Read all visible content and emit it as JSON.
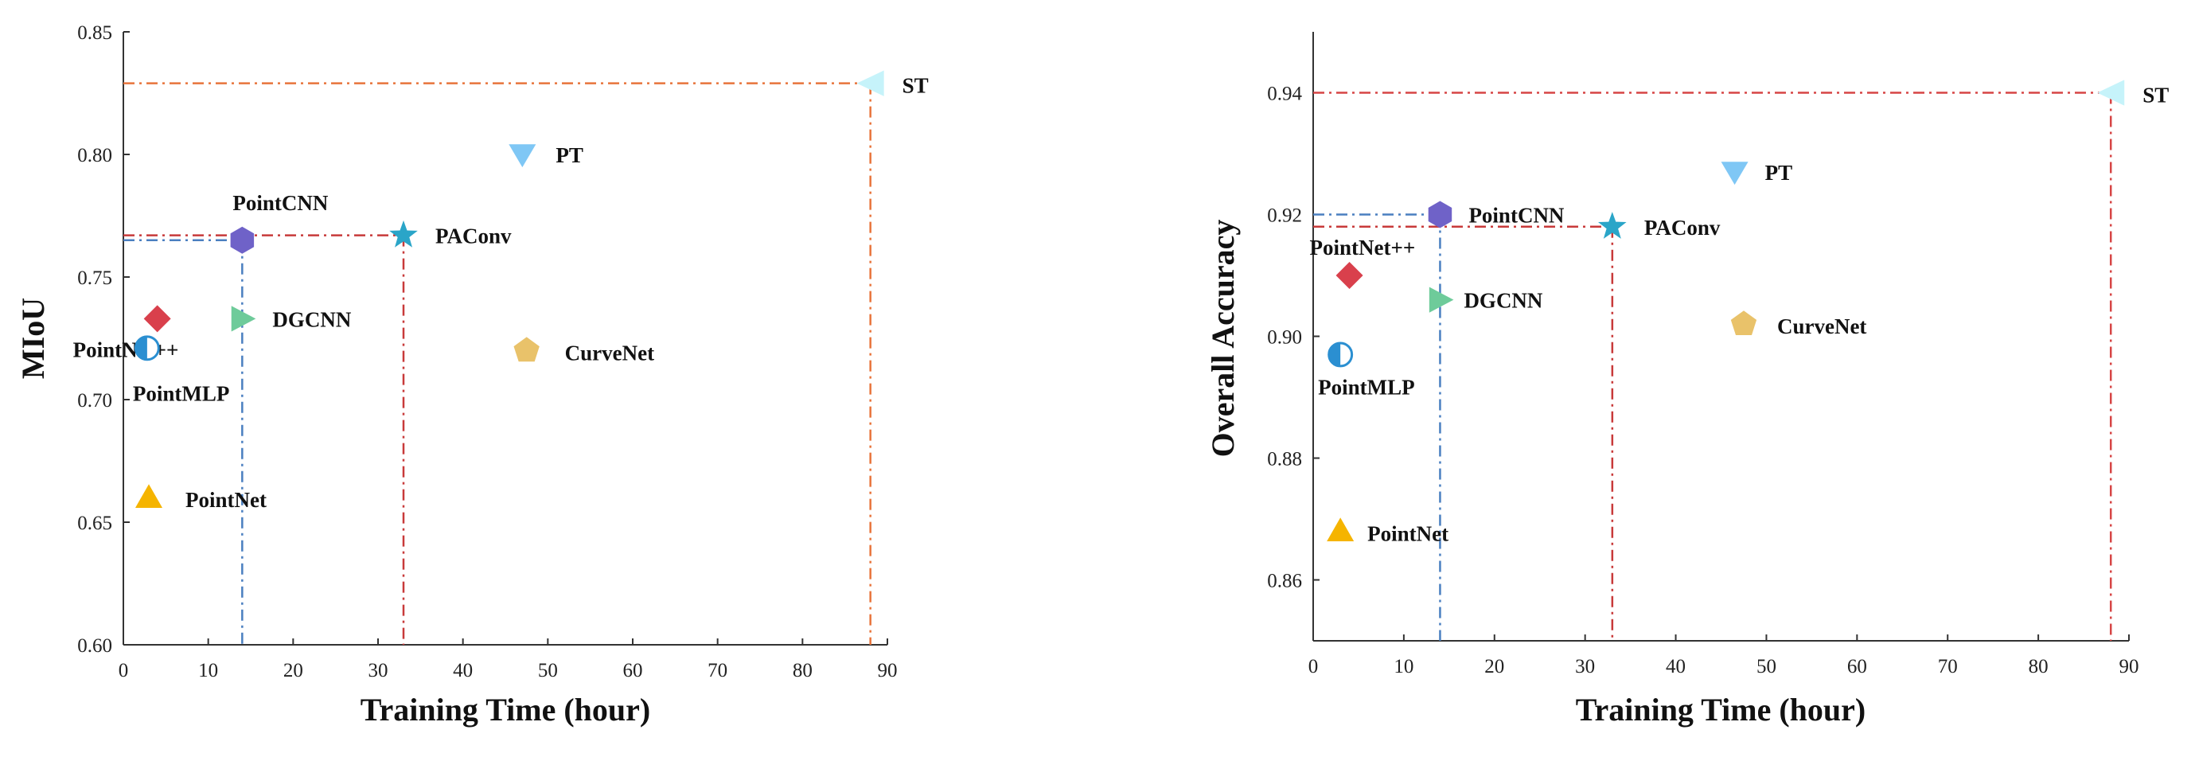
{
  "chart_data": [
    {
      "type": "scatter",
      "title": "",
      "xlabel": "Training Time (hour)",
      "ylabel": "MIoU",
      "xlim": [
        0,
        90
      ],
      "ylim": [
        0.6,
        0.85
      ],
      "xticks": [
        0,
        10,
        20,
        30,
        40,
        50,
        60,
        70,
        80,
        90
      ],
      "xtick_labels": [
        "0",
        "10",
        "20",
        "30",
        "40",
        "50",
        "60",
        "70",
        "80",
        "90"
      ],
      "yticks": [
        0.6,
        0.65,
        0.7,
        0.75,
        0.8,
        0.85
      ],
      "ytick_labels": [
        "0.60",
        "0.65",
        "0.70",
        "0.75",
        "0.80",
        "0.85"
      ],
      "grid": false,
      "points": [
        {
          "name": "ST",
          "label": "ST",
          "x": 88.0,
          "y": 0.829,
          "marker": "triangle-left",
          "color": "#c6f3fa",
          "label_pos": "right"
        },
        {
          "name": "PT",
          "label": "PT",
          "x": 47.0,
          "y": 0.8,
          "marker": "triangle-down",
          "color": "#7fc7f5",
          "label_pos": "right"
        },
        {
          "name": "PointCNN",
          "label": "PointCNN",
          "x": 14.0,
          "y": 0.765,
          "marker": "hexagon",
          "color": "#6f62c8",
          "label_pos": "above"
        },
        {
          "name": "PAConv",
          "label": "PAConv",
          "x": 33.0,
          "y": 0.767,
          "marker": "star",
          "color": "#2aa5c8",
          "label_pos": "right"
        },
        {
          "name": "PointNet++",
          "label": "PointNet++",
          "x": 4.0,
          "y": 0.733,
          "marker": "diamond",
          "color": "#d9404c",
          "label_pos": "above"
        },
        {
          "name": "DGCNN",
          "label": "DGCNN",
          "x": 14.0,
          "y": 0.733,
          "marker": "triangle-right",
          "color": "#6ecb9a",
          "label_pos": "right"
        },
        {
          "name": "CurveNet",
          "label": "CurveNet",
          "x": 47.5,
          "y": 0.72,
          "marker": "pentagon",
          "color": "#e9c26a",
          "label_pos": "right"
        },
        {
          "name": "PointMLP",
          "label": "PointMLP",
          "x": 2.8,
          "y": 0.721,
          "marker": "half-circle",
          "color": "#2b8fd1",
          "label_pos": "below"
        },
        {
          "name": "PointNet",
          "label": "PointNet",
          "x": 3.0,
          "y": 0.66,
          "marker": "triangle-up",
          "color": "#f5b400",
          "label_pos": "right"
        }
      ],
      "reference_lines": [
        {
          "x": 88.0,
          "y": 0.829,
          "color": "#e8743b",
          "style": "dash-dot"
        },
        {
          "x": 33.0,
          "y": 0.767,
          "color": "#c83a3a",
          "style": "dash-dot"
        },
        {
          "x": 14.0,
          "y": 0.765,
          "color": "#4a7fc0",
          "style": "dash-dot"
        }
      ]
    },
    {
      "type": "scatter",
      "title": "",
      "xlabel": "Training Time (hour)",
      "ylabel": "Overall Accuracy",
      "xlim": [
        0,
        90
      ],
      "ylim": [
        0.85,
        0.95
      ],
      "xticks": [
        0,
        10,
        20,
        30,
        40,
        50,
        60,
        70,
        80,
        90
      ],
      "xtick_labels": [
        "0",
        "10",
        "20",
        "30",
        "40",
        "50",
        "60",
        "70",
        "80",
        "90"
      ],
      "yticks": [
        0.86,
        0.88,
        0.9,
        0.92,
        0.94
      ],
      "ytick_labels": [
        "0.86",
        "0.88",
        "0.90",
        "0.92",
        "0.94"
      ],
      "grid": false,
      "points": [
        {
          "name": "ST",
          "label": "ST",
          "x": 88.0,
          "y": 0.94,
          "marker": "triangle-left",
          "color": "#c6f3fa",
          "label_pos": "right"
        },
        {
          "name": "PT",
          "label": "PT",
          "x": 46.5,
          "y": 0.927,
          "marker": "triangle-down",
          "color": "#7fc7f5",
          "label_pos": "right"
        },
        {
          "name": "PointCNN",
          "label": "PointCNN",
          "x": 14.0,
          "y": 0.92,
          "marker": "hexagon",
          "color": "#6f62c8",
          "label_pos": "right"
        },
        {
          "name": "PAConv",
          "label": "PAConv",
          "x": 33.0,
          "y": 0.918,
          "marker": "star",
          "color": "#2aa5c8",
          "label_pos": "right"
        },
        {
          "name": "PointNet++",
          "label": "PointNet++",
          "x": 4.0,
          "y": 0.91,
          "marker": "diamond",
          "color": "#d9404c",
          "label_pos": "above"
        },
        {
          "name": "DGCNN",
          "label": "DGCNN",
          "x": 14.0,
          "y": 0.906,
          "marker": "triangle-right",
          "color": "#6ecb9a",
          "label_pos": "right"
        },
        {
          "name": "CurveNet",
          "label": "CurveNet",
          "x": 47.5,
          "y": 0.902,
          "marker": "pentagon",
          "color": "#e9c26a",
          "label_pos": "right"
        },
        {
          "name": "PointMLP",
          "label": "PointMLP",
          "x": 3.0,
          "y": 0.897,
          "marker": "half-circle",
          "color": "#2b8fd1",
          "label_pos": "below"
        },
        {
          "name": "PointNet",
          "label": "PointNet",
          "x": 3.0,
          "y": 0.868,
          "marker": "triangle-up",
          "color": "#f5b400",
          "label_pos": "right"
        }
      ],
      "reference_lines": [
        {
          "x": 88.0,
          "y": 0.94,
          "color": "#d64545",
          "style": "dash-dot"
        },
        {
          "x": 33.0,
          "y": 0.918,
          "color": "#c83a3a",
          "style": "dash-dot"
        },
        {
          "x": 14.0,
          "y": 0.92,
          "color": "#4a7fc0",
          "style": "dash-dot"
        }
      ]
    }
  ]
}
